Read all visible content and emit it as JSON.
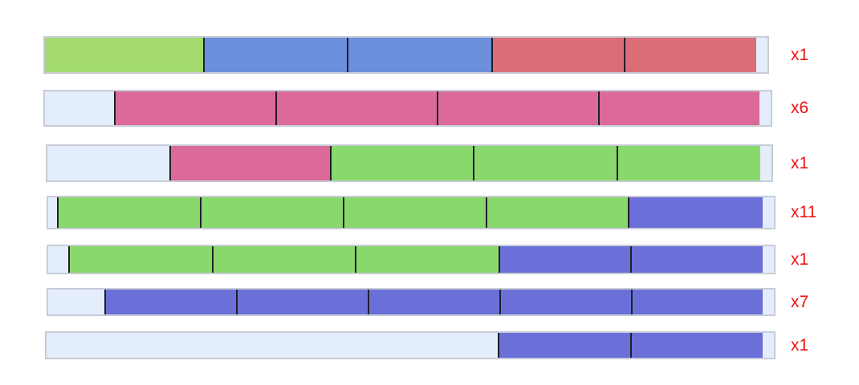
{
  "colors": {
    "empty": "#e3edfb",
    "green": "#89d86c",
    "green_light": "#a2da6f",
    "blue": "#6b70d8",
    "blue_light": "#6b8fda",
    "pink": "#db6a98",
    "red": "#db6d78",
    "label": "#ee1111"
  },
  "rows": [
    {
      "count_label": "x1",
      "units": [
        {
          "color": "green_light",
          "width": 1.1
        },
        {
          "color": "blue_light",
          "width": 1
        },
        {
          "color": "blue_light",
          "width": 1
        },
        {
          "color": "red",
          "width": 0.92
        },
        {
          "color": "red",
          "width": 0.92
        },
        {
          "color": "empty",
          "width": 0.08
        }
      ]
    },
    {
      "count_label": "x6",
      "units": [
        {
          "color": "empty",
          "width": 0.43
        },
        {
          "color": "pink",
          "width": 1
        },
        {
          "color": "pink",
          "width": 1
        },
        {
          "color": "pink",
          "width": 1
        },
        {
          "color": "pink",
          "width": 1
        },
        {
          "color": "empty",
          "width": 0.07
        }
      ]
    },
    {
      "count_label": "x1",
      "units": [
        {
          "color": "empty",
          "width": 0.85
        },
        {
          "color": "pink",
          "width": 1.12
        },
        {
          "color": "green",
          "width": 1
        },
        {
          "color": "green",
          "width": 1
        },
        {
          "color": "green",
          "width": 1
        },
        {
          "color": "empty",
          "width": 0.08
        }
      ]
    },
    {
      "count_label": "x11",
      "units": [
        {
          "color": "empty",
          "width": 0.06
        },
        {
          "color": "green",
          "width": 1
        },
        {
          "color": "green",
          "width": 1
        },
        {
          "color": "green",
          "width": 1
        },
        {
          "color": "green",
          "width": 1
        },
        {
          "color": "blue",
          "width": 0.94
        },
        {
          "color": "empty",
          "width": 0.08
        }
      ]
    },
    {
      "count_label": "x1",
      "units": [
        {
          "color": "empty",
          "width": 0.14
        },
        {
          "color": "green",
          "width": 1
        },
        {
          "color": "green",
          "width": 1
        },
        {
          "color": "green",
          "width": 1
        },
        {
          "color": "blue",
          "width": 0.92
        },
        {
          "color": "blue",
          "width": 0.92
        },
        {
          "color": "empty",
          "width": 0.08
        }
      ]
    },
    {
      "count_label": "x7",
      "units": [
        {
          "color": "empty",
          "width": 0.39
        },
        {
          "color": "blue",
          "width": 0.92
        },
        {
          "color": "blue",
          "width": 0.92
        },
        {
          "color": "blue",
          "width": 0.92
        },
        {
          "color": "blue",
          "width": 0.92
        },
        {
          "color": "blue",
          "width": 0.92
        },
        {
          "color": "empty",
          "width": 0.08
        }
      ]
    },
    {
      "count_label": "x1",
      "units": [
        {
          "color": "empty",
          "width": 3.14
        },
        {
          "color": "blue",
          "width": 0.92
        },
        {
          "color": "blue",
          "width": 0.92
        },
        {
          "color": "empty",
          "width": 0.08
        }
      ]
    }
  ]
}
